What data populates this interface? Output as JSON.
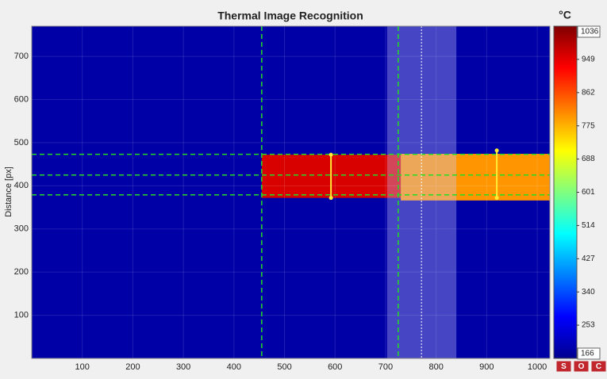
{
  "chart_data": {
    "type": "heatmap",
    "title": "Thermal Image Recognition",
    "y_label": "Distance [px]",
    "xlim": [
      0,
      1025
    ],
    "ylim": [
      0,
      770
    ],
    "xticks": [
      100,
      200,
      300,
      400,
      500,
      600,
      700,
      800,
      900,
      1000
    ],
    "yticks": [
      100,
      200,
      300,
      400,
      500,
      600,
      700
    ],
    "grid": true,
    "background_value": 200,
    "regions": [
      {
        "x": [
          455,
          730
        ],
        "y": [
          372,
          472
        ],
        "value": 960
      },
      {
        "x": [
          730,
          1025
        ],
        "y": [
          366,
          474
        ],
        "value": 800
      }
    ],
    "guides": {
      "vertical": [
        455,
        725
      ],
      "horizontal": [
        473,
        425,
        379
      ],
      "cursor": 771,
      "band": [
        703,
        840
      ],
      "measure": [
        {
          "x": 592,
          "y": [
            372,
            472
          ]
        },
        {
          "x": 920,
          "y": [
            372,
            482
          ]
        }
      ]
    },
    "colorbar": {
      "unit": "°C",
      "clim": [
        166,
        1036
      ],
      "cticks": [
        253,
        340,
        427,
        514,
        601,
        688,
        775,
        862,
        949
      ]
    },
    "buttons": [
      "S",
      "O",
      "C"
    ]
  }
}
